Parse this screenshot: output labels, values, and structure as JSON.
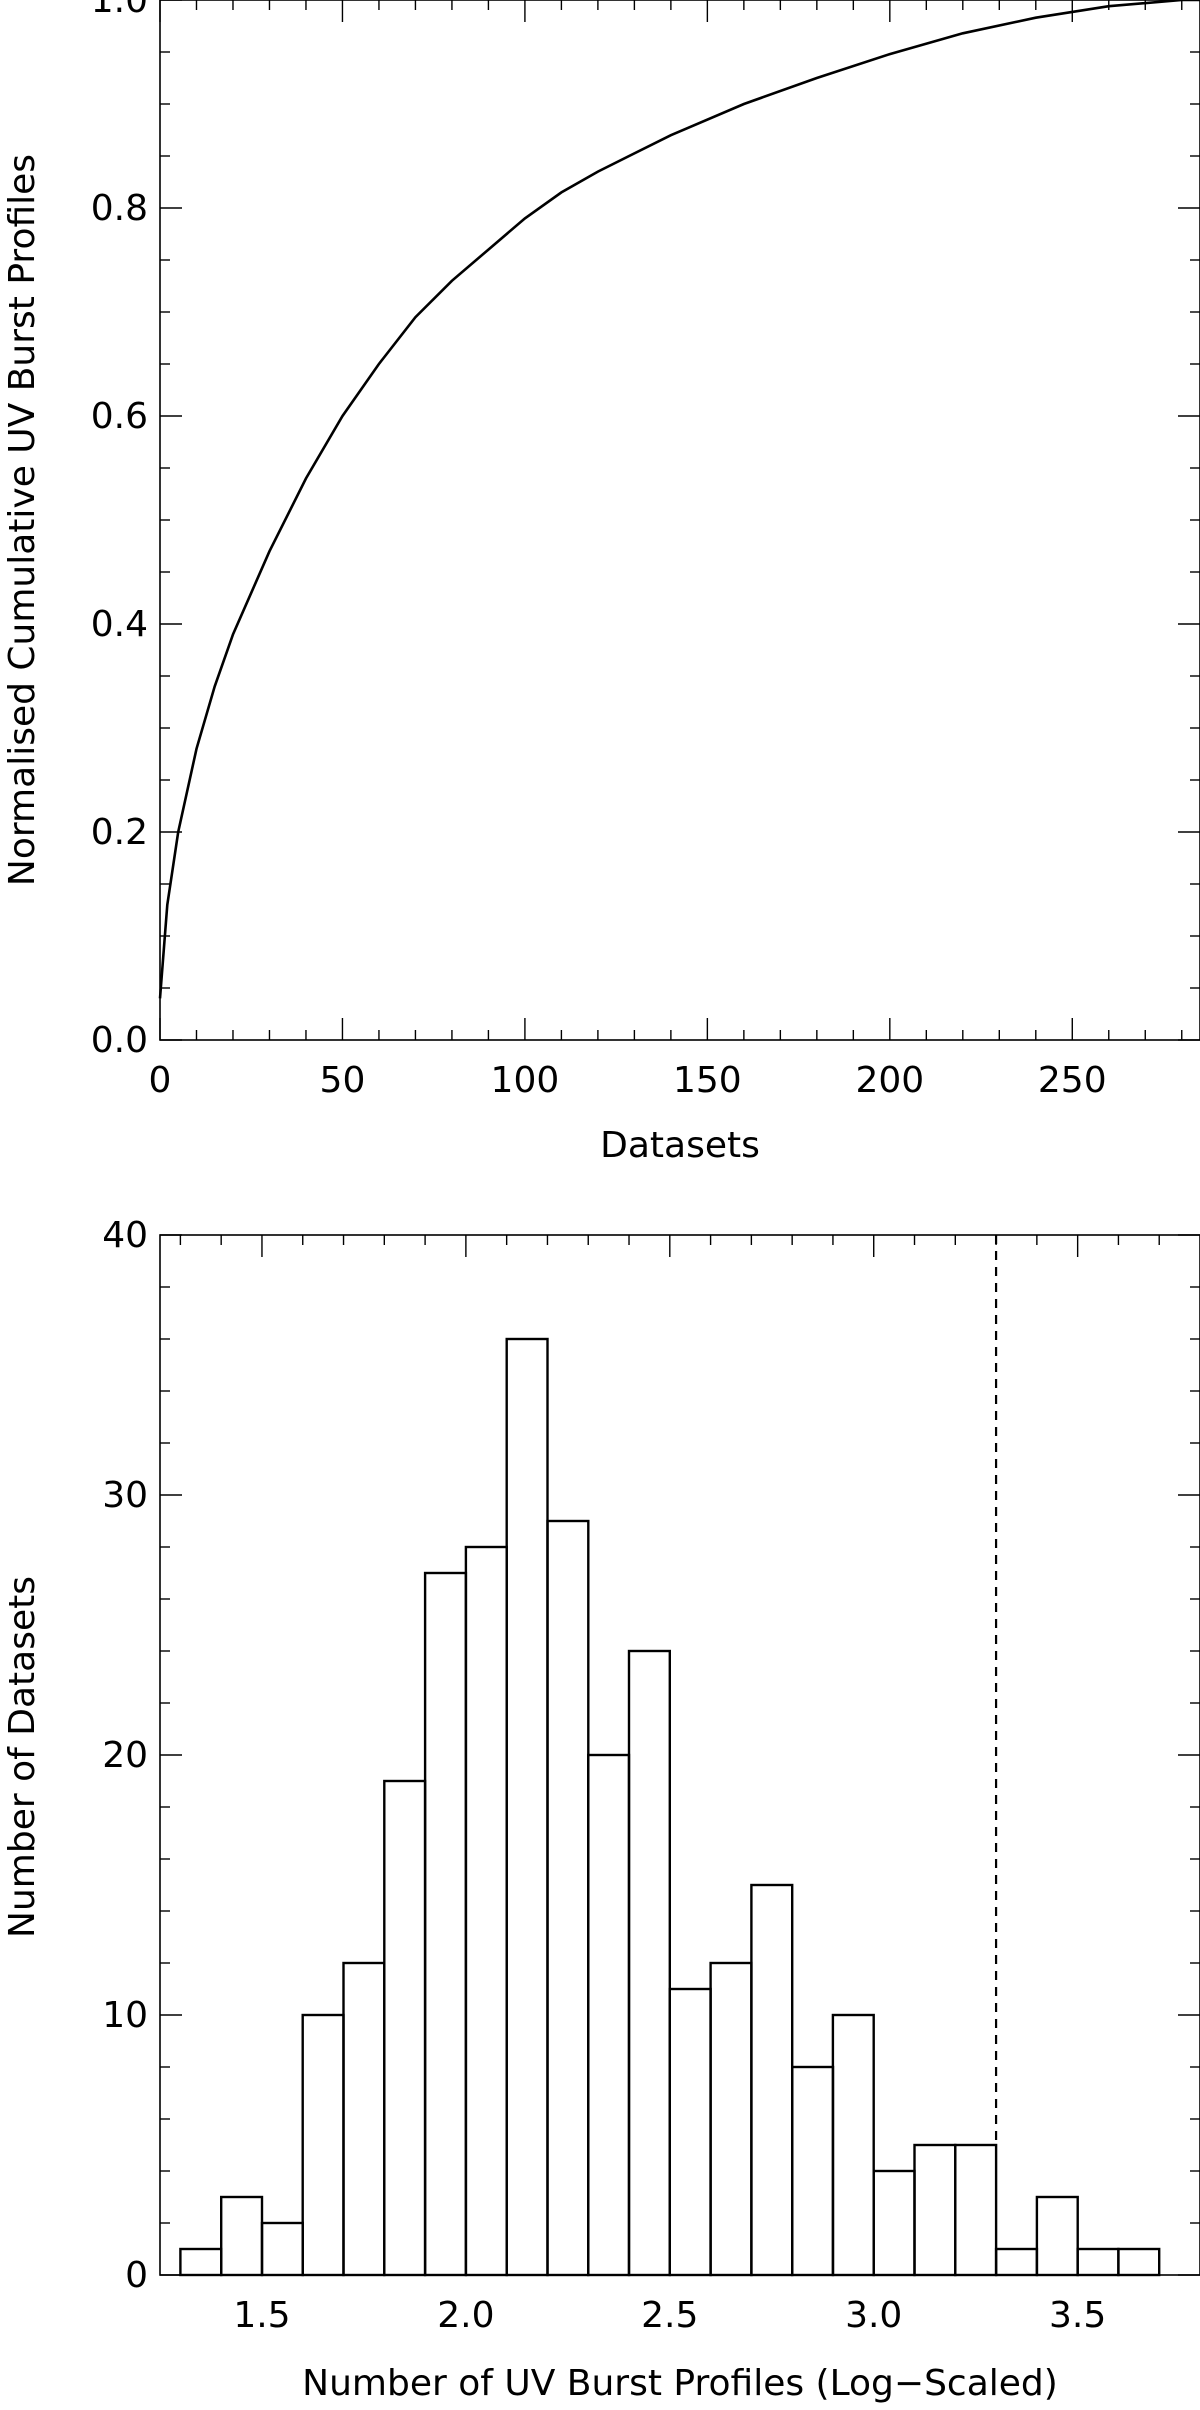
{
  "chart_data": [
    {
      "type": "line",
      "xlabel": "Datasets",
      "ylabel": "Normalised Cumulative UV Burst Profiles",
      "xlim": [
        0,
        285
      ],
      "ylim": [
        0.0,
        1.0
      ],
      "xticks": [
        0,
        50,
        100,
        150,
        200,
        250
      ],
      "xtick_labels": [
        "0",
        "50",
        "100",
        "150",
        "200",
        "250"
      ],
      "yticks": [
        0.0,
        0.2,
        0.4,
        0.6,
        0.8,
        1.0
      ],
      "ytick_labels": [
        "0.0",
        "0.2",
        "0.4",
        "0.6",
        "0.8",
        "1.0"
      ],
      "grid": false,
      "series": [
        {
          "x": [
            0,
            2,
            5,
            10,
            15,
            20,
            30,
            40,
            50,
            60,
            70,
            80,
            90,
            100,
            110,
            120,
            140,
            160,
            180,
            200,
            220,
            240,
            260,
            280,
            285
          ],
          "y": [
            0.04,
            0.13,
            0.2,
            0.28,
            0.34,
            0.39,
            0.47,
            0.54,
            0.6,
            0.65,
            0.695,
            0.73,
            0.76,
            0.79,
            0.815,
            0.835,
            0.87,
            0.9,
            0.925,
            0.948,
            0.968,
            0.983,
            0.994,
            1.0,
            1.0
          ]
        }
      ]
    },
    {
      "type": "bar",
      "xlabel": "Number of UV Burst Profiles (Log−Scaled)",
      "ylabel": "Number of Datasets",
      "xlim": [
        1.25,
        3.8
      ],
      "ylim": [
        0,
        40
      ],
      "xticks": [
        1.5,
        2.0,
        2.5,
        3.0,
        3.5
      ],
      "xtick_labels": [
        "1.5",
        "2.0",
        "2.5",
        "3.0",
        "3.5"
      ],
      "yticks": [
        0,
        10,
        20,
        30,
        40
      ],
      "ytick_labels": [
        "0",
        "10",
        "20",
        "30",
        "40"
      ],
      "grid": false,
      "bin_width": 0.1,
      "bin_starts": [
        1.3,
        1.4,
        1.5,
        1.6,
        1.7,
        1.8,
        1.9,
        2.0,
        2.1,
        2.2,
        2.3,
        2.4,
        2.5,
        2.6,
        2.7,
        2.8,
        2.9,
        3.0,
        3.1,
        3.2,
        3.3,
        3.4,
        3.5,
        3.6
      ],
      "values": [
        1,
        3,
        2,
        10,
        12,
        19,
        27,
        28,
        36,
        29,
        20,
        24,
        11,
        12,
        15,
        8,
        10,
        4,
        5,
        5,
        1,
        3,
        1,
        1
      ],
      "threshold_x": 3.3
    }
  ]
}
